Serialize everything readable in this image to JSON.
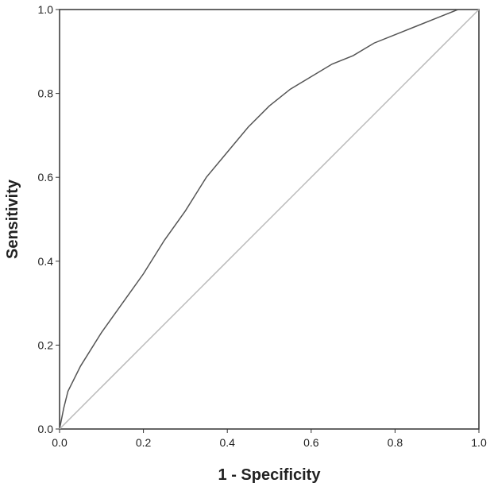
{
  "chart_data": {
    "type": "line",
    "x_label": "1 - Specificity",
    "y_label": "Sensitivity",
    "x": [
      0,
      0.01,
      0.02,
      0.05,
      0.1,
      0.15,
      0.2,
      0.25,
      0.3,
      0.35,
      0.4,
      0.45,
      0.5,
      0.55,
      0.6,
      0.65,
      0.7,
      0.75,
      0.8,
      0.85,
      0.9,
      0.95,
      1
    ],
    "series": [
      {
        "color": "#555555",
        "values": [
          0,
          0.05,
          0.09,
          0.15,
          0.23,
          0.3,
          0.37,
          0.45,
          0.52,
          0.6,
          0.66,
          0.72,
          0.77,
          0.81,
          0.84,
          0.87,
          0.89,
          0.92,
          0.94,
          0.96,
          0.98,
          1,
          1
        ]
      },
      {
        "color": "#bbbbbb",
        "values": [
          0,
          0.01,
          0.02,
          0.05,
          0.1,
          0.15,
          0.2,
          0.25,
          0.3,
          0.35,
          0.4,
          0.45,
          0.5,
          0.55,
          0.6,
          0.65,
          0.7,
          0.75,
          0.8,
          0.85,
          0.9,
          0.95,
          1
        ]
      }
    ],
    "xlim": [
      0,
      1
    ],
    "ylim": [
      0,
      1
    ],
    "xticks": [
      {
        "value": 0,
        "label": "0.0"
      },
      0.2,
      0.4,
      0.6,
      0.8,
      {
        "value": 1,
        "label": "1.0"
      }
    ],
    "yticks": [
      {
        "value": 0,
        "label": "0.0"
      },
      0.2,
      0.4,
      0.6,
      0.8,
      {
        "value": 1,
        "label": "1.0"
      }
    ]
  }
}
